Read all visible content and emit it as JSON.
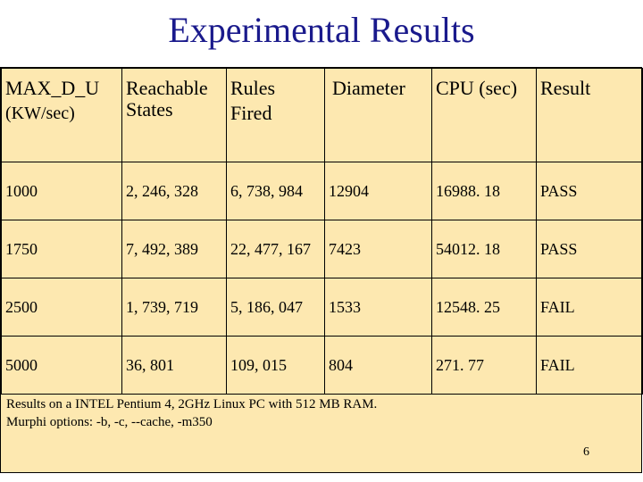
{
  "title": "Experimental Results",
  "table": {
    "headers": [
      [
        "MAX_D_U",
        "(KW/sec)"
      ],
      [
        "Reachable",
        "States"
      ],
      [
        "Rules",
        "Fired"
      ],
      [
        "Diameter"
      ],
      [
        "CPU (sec)"
      ],
      [
        "Result"
      ]
    ],
    "rows": [
      [
        "1000",
        "2, 246, 328",
        "6, 738, 984",
        "12904",
        "16988. 18",
        "PASS"
      ],
      [
        "1750",
        "7, 492, 389",
        "22, 477, 167",
        "7423",
        "54012. 18",
        "PASS"
      ],
      [
        "2500",
        "1, 739, 719",
        "5, 186, 047",
        "1533",
        "12548. 25",
        "FAIL"
      ],
      [
        "5000",
        "36, 801",
        "109, 015",
        "804",
        "271. 77",
        "FAIL"
      ]
    ]
  },
  "notes": {
    "line1": "Results on a INTEL Pentium 4, 2GHz Linux PC with 512 MB RAM.",
    "line2": "Murphi options: -b, -c, --cache, -m350"
  },
  "page_number": "6",
  "colors": {
    "title": "#1a1a8c",
    "panel": "#fde8b0"
  }
}
